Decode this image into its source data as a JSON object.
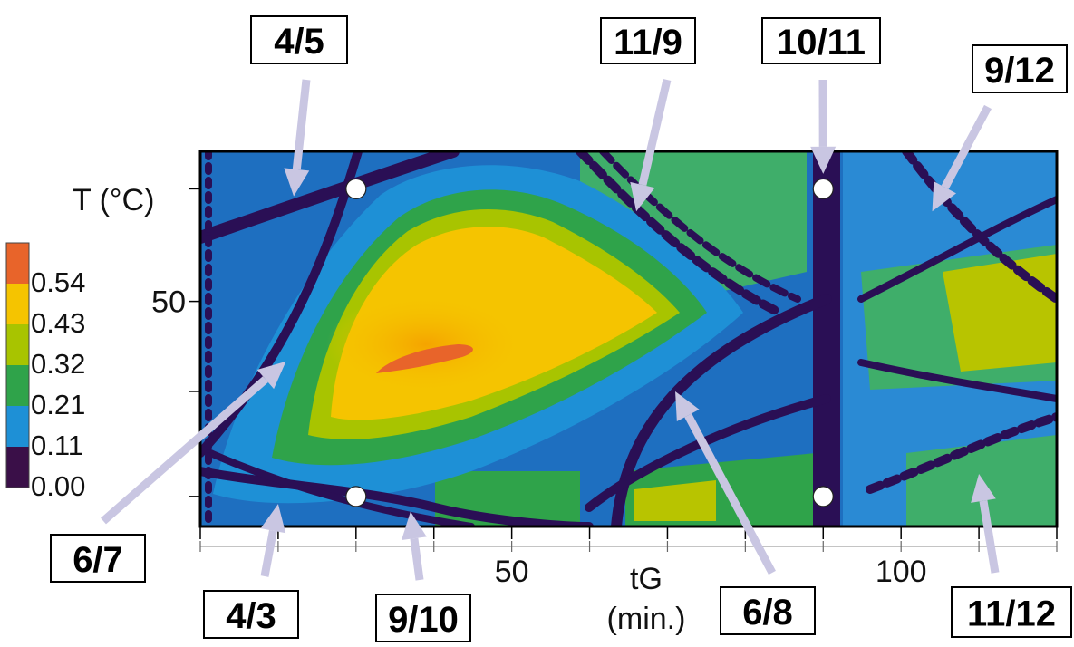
{
  "chart_data": {
    "type": "heatmap",
    "title": "",
    "xlabel": "tG",
    "xunit": "(min.)",
    "ylabel": "T (°C)",
    "xlim": [
      10,
      120
    ],
    "ylim": [
      20,
      70
    ],
    "x_ticks": [
      {
        "value": 50,
        "label": "50"
      },
      {
        "value": 100,
        "label": "100"
      }
    ],
    "y_ticks": [
      {
        "value": 50,
        "label": "50"
      }
    ],
    "colorbar": {
      "labels": [
        "0.54",
        "0.43",
        "0.32",
        "0.21",
        "0.11",
        "0.00"
      ],
      "colors": [
        "#e8642a",
        "#f5c400",
        "#a8c400",
        "#2fa34a",
        "#1e90d6",
        "#3a0f48"
      ]
    },
    "max_region": {
      "x": [
        32,
        44
      ],
      "y": [
        39,
        42
      ],
      "value": 0.54
    },
    "design_points": [
      {
        "x": 30,
        "y": 65
      },
      {
        "x": 90,
        "y": 65
      },
      {
        "x": 30,
        "y": 24
      },
      {
        "x": 90,
        "y": 24
      }
    ],
    "annotations": [
      {
        "label": "4/5",
        "target": {
          "x": 22,
          "y": 64
        }
      },
      {
        "label": "11/9",
        "target": {
          "x": 66,
          "y": 62
        }
      },
      {
        "label": "10/11",
        "target": {
          "x": 90,
          "y": 67
        }
      },
      {
        "label": "9/12",
        "target": {
          "x": 104,
          "y": 62
        }
      },
      {
        "label": "6/7",
        "target": {
          "x": 21,
          "y": 42
        }
      },
      {
        "label": "4/3",
        "target": {
          "x": 20,
          "y": 23
        }
      },
      {
        "label": "9/10",
        "target": {
          "x": 37,
          "y": 22
        }
      },
      {
        "label": "6/8",
        "target": {
          "x": 71,
          "y": 38
        }
      },
      {
        "label": "11/12",
        "target": {
          "x": 110,
          "y": 27
        }
      }
    ]
  }
}
